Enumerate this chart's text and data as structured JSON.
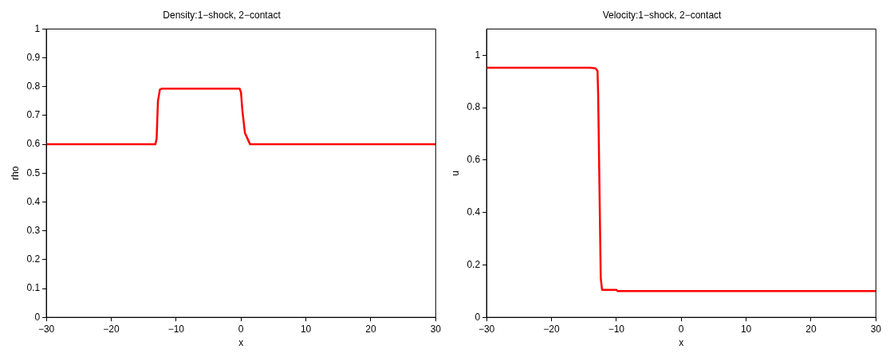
{
  "chart_data": [
    {
      "type": "line",
      "title": "Density:1−shock, 2−contact",
      "xlabel": "x",
      "ylabel": "rho",
      "xlim": [
        -30,
        30
      ],
      "xticks": [
        -30,
        -20,
        -10,
        0,
        10,
        20,
        30
      ],
      "ylim": [
        0,
        1
      ],
      "yticks": [
        0,
        0.1,
        0.2,
        0.3,
        0.4,
        0.5,
        0.6,
        0.7,
        0.8,
        0.9,
        1
      ],
      "grid": false,
      "legend": false,
      "marker": "none",
      "line_style": "solid",
      "series": [
        {
          "color": "#ff0000",
          "x": [
            -30,
            -14,
            -13.2,
            -13,
            -12.8,
            -12.5,
            -12.2,
            -5,
            -0.2,
            0,
            0.2,
            0.6,
            1,
            1.4,
            10,
            30
          ],
          "values": [
            0.6,
            0.6,
            0.6,
            0.62,
            0.75,
            0.79,
            0.793,
            0.793,
            0.793,
            0.78,
            0.72,
            0.64,
            0.62,
            0.6,
            0.6,
            0.6
          ]
        }
      ]
    },
    {
      "type": "line",
      "title": "Velocity:1−shock, 2−contact",
      "xlabel": "x",
      "ylabel": "u",
      "xlim": [
        -30,
        30
      ],
      "xticks": [
        -30,
        -20,
        -10,
        0,
        10,
        20,
        30
      ],
      "ylim": [
        0,
        1.1
      ],
      "yticks": [
        0,
        0.2,
        0.4,
        0.6,
        0.8,
        1
      ],
      "grid": false,
      "legend": false,
      "marker": "none",
      "line_style": "solid",
      "series": [
        {
          "color": "#ff0000",
          "x": [
            -30,
            -14,
            -13.2,
            -12.9,
            -12.8,
            -12.6,
            -12.4,
            -12.2,
            -10,
            -9.8,
            0,
            30
          ],
          "values": [
            0.952,
            0.952,
            0.95,
            0.94,
            0.85,
            0.5,
            0.15,
            0.105,
            0.105,
            0.1,
            0.1,
            0.1
          ]
        }
      ]
    }
  ]
}
